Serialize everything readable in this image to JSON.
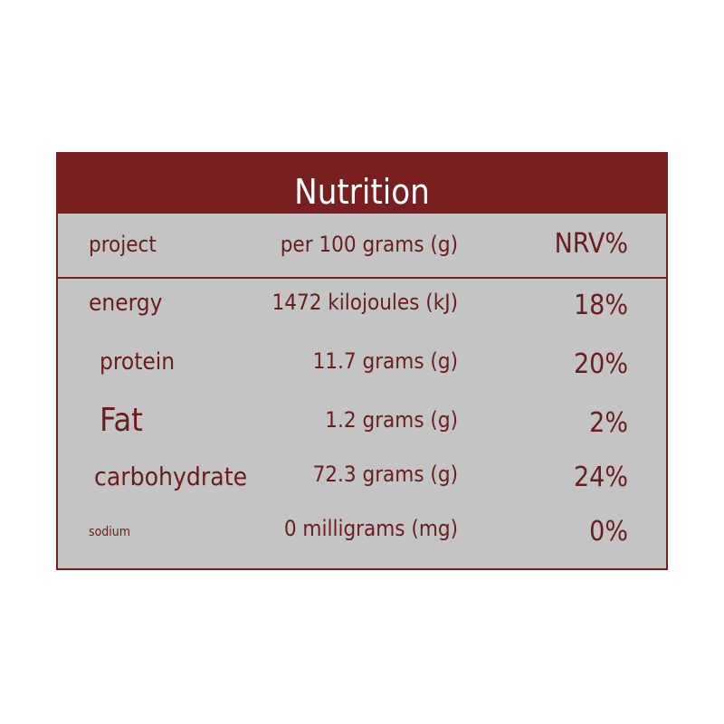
{
  "table": {
    "title": "Nutrition",
    "header": [
      "project",
      "per 100 grams (g)",
      "NRV%"
    ],
    "rows": [
      [
        "energy",
        "1472 kilojoules (kJ)",
        "18%"
      ],
      [
        "protein",
        "11.7 grams (g)",
        "20%"
      ],
      [
        "Fat",
        "1.2 grams (g)",
        "2%"
      ],
      [
        "carbohydrate",
        "72.3 grams (g)",
        "24%"
      ],
      [
        "sodium",
        "0 milligrams (mg)",
        "0%"
      ]
    ]
  }
}
